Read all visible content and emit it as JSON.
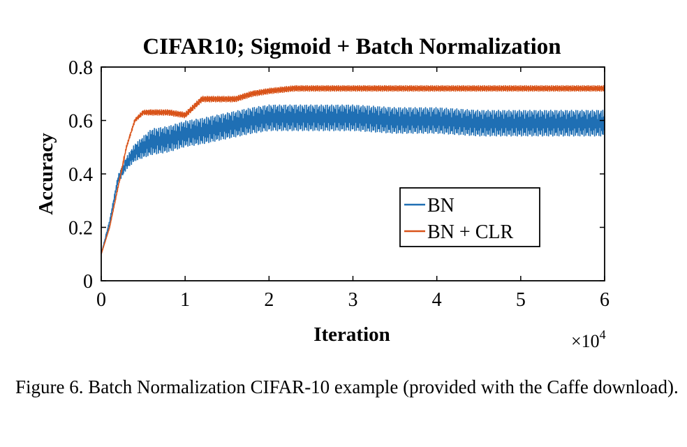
{
  "chart_data": {
    "type": "line",
    "title": "CIFAR10; Sigmoid + Batch Normalization",
    "xlabel": "Iteration",
    "ylabel": "Accuracy",
    "x_multiplier_label": "×10",
    "x_multiplier_exponent": "4",
    "xlim": [
      0,
      6
    ],
    "ylim": [
      0,
      0.8
    ],
    "x_ticks": [
      "0",
      "1",
      "2",
      "3",
      "4",
      "5",
      "6"
    ],
    "y_ticks": [
      "0",
      "0.2",
      "0.4",
      "0.6",
      "0.8"
    ],
    "legend_position": "center-right",
    "series": [
      {
        "name": "BN",
        "color": "#1f6fb4",
        "x": [
          0,
          0.1,
          0.2,
          0.3,
          0.4,
          0.5,
          0.6,
          0.8,
          1.0,
          1.2,
          1.5,
          1.8,
          2.0,
          2.3,
          2.6,
          3.0,
          3.5,
          4.0,
          4.5,
          5.0,
          5.5,
          6.0
        ],
        "y": [
          0.1,
          0.22,
          0.38,
          0.44,
          0.48,
          0.5,
          0.52,
          0.53,
          0.55,
          0.56,
          0.58,
          0.6,
          0.61,
          0.61,
          0.61,
          0.61,
          0.6,
          0.6,
          0.59,
          0.59,
          0.59,
          0.59
        ],
        "oscillation": 0.05
      },
      {
        "name": "BN + CLR",
        "color": "#d9541a",
        "x": [
          0,
          0.1,
          0.2,
          0.3,
          0.4,
          0.5,
          0.6,
          0.8,
          1.0,
          1.2,
          1.4,
          1.6,
          1.8,
          2.0,
          2.3,
          2.6,
          3.0,
          3.5,
          4.0,
          4.5,
          5.0,
          5.5,
          6.0
        ],
        "y": [
          0.1,
          0.2,
          0.35,
          0.5,
          0.6,
          0.63,
          0.63,
          0.63,
          0.62,
          0.68,
          0.68,
          0.68,
          0.7,
          0.71,
          0.72,
          0.72,
          0.72,
          0.72,
          0.72,
          0.72,
          0.72,
          0.72,
          0.72
        ],
        "oscillation": 0.012
      }
    ]
  },
  "caption": "Figure 6. Batch Normalization CIFAR-10 example (provided with the Caffe download)."
}
